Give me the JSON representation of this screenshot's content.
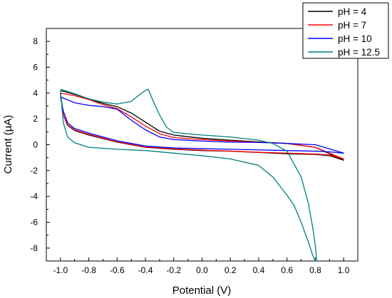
{
  "chart_data": {
    "type": "line",
    "xlabel": "Potential (V)",
    "ylabel": "Current (µA)",
    "xlim": [
      -1.1,
      1.1
    ],
    "ylim": [
      -9,
      9
    ],
    "x_ticks": [
      -1.0,
      -0.8,
      -0.6,
      -0.4,
      -0.2,
      0.0,
      0.2,
      0.4,
      0.6,
      0.8,
      1.0
    ],
    "x_tick_labels": [
      "-1.0",
      "-0.8",
      "-0.6",
      "-0.4",
      "-0.2",
      "0.0",
      "0.2",
      "0.4",
      "0.6",
      "0.8",
      "1.0"
    ],
    "y_ticks": [
      -8,
      -6,
      -4,
      -2,
      0,
      2,
      4,
      6,
      8
    ],
    "y_tick_labels": [
      "-8",
      "-6",
      "-4",
      "-2",
      "0",
      "2",
      "4",
      "6",
      "8"
    ],
    "grid": false,
    "legend_position": "top-right",
    "series": [
      {
        "name": "pH = 4",
        "color": "#000000",
        "x": [
          -1.0,
          -0.9,
          -0.8,
          -0.7,
          -0.6,
          -0.5,
          -0.4,
          -0.3,
          -0.2,
          0.0,
          0.2,
          0.4,
          0.6,
          0.8,
          1.0,
          0.9,
          0.8,
          0.6,
          0.4,
          0.2,
          0.0,
          -0.2,
          -0.4,
          -0.6,
          -0.8,
          -0.9,
          -0.95,
          -0.98,
          -1.0
        ],
        "y": [
          4.2,
          3.9,
          3.55,
          3.2,
          2.95,
          2.45,
          1.75,
          1.05,
          0.75,
          0.5,
          0.35,
          0.22,
          0.1,
          -0.2,
          -1.2,
          -0.85,
          -0.75,
          -0.7,
          -0.6,
          -0.5,
          -0.45,
          -0.35,
          -0.2,
          0.2,
          0.75,
          1.1,
          1.5,
          2.3,
          4.0
        ]
      },
      {
        "name": "pH = 7",
        "color": "#ff0000",
        "x": [
          -1.0,
          -0.9,
          -0.8,
          -0.7,
          -0.6,
          -0.5,
          -0.4,
          -0.3,
          -0.2,
          0.0,
          0.2,
          0.4,
          0.6,
          0.8,
          1.0,
          0.9,
          0.8,
          0.6,
          0.4,
          0.2,
          0.0,
          -0.2,
          -0.4,
          -0.6,
          -0.8,
          -0.9,
          -0.95,
          -0.98,
          -1.0
        ],
        "y": [
          4.0,
          3.8,
          3.5,
          3.1,
          2.8,
          2.15,
          1.45,
          0.85,
          0.55,
          0.4,
          0.28,
          0.2,
          0.1,
          -0.2,
          -1.1,
          -0.8,
          -0.72,
          -0.65,
          -0.58,
          -0.5,
          -0.42,
          -0.32,
          -0.18,
          0.22,
          0.8,
          1.15,
          1.55,
          2.3,
          3.9
        ]
      },
      {
        "name": "pH = 10",
        "color": "#0000ff",
        "x": [
          -1.0,
          -0.9,
          -0.8,
          -0.7,
          -0.6,
          -0.5,
          -0.4,
          -0.3,
          -0.2,
          0.0,
          0.2,
          0.4,
          0.6,
          0.8,
          1.0,
          0.9,
          0.8,
          0.6,
          0.4,
          0.2,
          0.0,
          -0.2,
          -0.4,
          -0.6,
          -0.8,
          -0.9,
          -0.95,
          -0.98,
          -1.0
        ],
        "y": [
          3.7,
          3.25,
          3.05,
          2.95,
          2.75,
          1.9,
          1.15,
          0.6,
          0.4,
          0.28,
          0.2,
          0.18,
          0.1,
          0.0,
          -0.65,
          -0.55,
          -0.5,
          -0.45,
          -0.4,
          -0.35,
          -0.3,
          -0.25,
          -0.1,
          0.3,
          0.9,
          1.25,
          1.7,
          2.6,
          3.7
        ]
      },
      {
        "name": "pH = 12.5",
        "color": "#008080",
        "x": [
          -1.0,
          -0.9,
          -0.8,
          -0.7,
          -0.6,
          -0.5,
          -0.45,
          -0.4,
          -0.38,
          -0.35,
          -0.3,
          -0.25,
          -0.2,
          0.0,
          0.2,
          0.4,
          0.5,
          0.6,
          0.7,
          0.75,
          0.78,
          0.8,
          0.81,
          0.8,
          0.78,
          0.75,
          0.7,
          0.65,
          0.6,
          0.5,
          0.4,
          0.2,
          0.0,
          -0.2,
          -0.4,
          -0.6,
          -0.8,
          -0.9,
          -0.95,
          -0.98,
          -1.0
        ],
        "y": [
          4.3,
          3.95,
          3.55,
          3.3,
          3.15,
          3.35,
          3.8,
          4.2,
          4.3,
          3.5,
          2.3,
          1.35,
          0.95,
          0.75,
          0.6,
          0.35,
          0.1,
          -0.5,
          -2.5,
          -4.5,
          -6.3,
          -7.8,
          -9.0,
          -9.0,
          -8.5,
          -7.5,
          -6.0,
          -4.7,
          -3.9,
          -2.5,
          -1.6,
          -1.1,
          -0.85,
          -0.65,
          -0.45,
          -0.35,
          -0.2,
          0.15,
          0.6,
          1.7,
          4.2
        ]
      }
    ]
  }
}
